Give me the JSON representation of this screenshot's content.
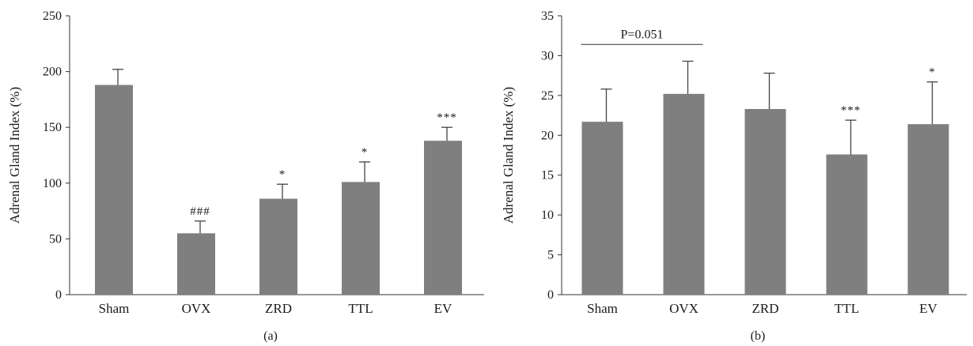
{
  "bar_color": "#7f7f7f",
  "chart_data": [
    {
      "type": "bar",
      "panel_label": "(a)",
      "ylabel": "Adrenal Gland Index (%)",
      "ylim": [
        0,
        250
      ],
      "yticks": [
        0,
        50,
        100,
        150,
        200,
        250
      ],
      "categories": [
        "Sham",
        "OVX",
        "ZRD",
        "TTL",
        "EV"
      ],
      "values": [
        188,
        55,
        86,
        101,
        138
      ],
      "errors": [
        14,
        11,
        13,
        18,
        12
      ],
      "annotations": [
        "",
        "###",
        "*",
        "*",
        "***"
      ],
      "bracket": null
    },
    {
      "type": "bar",
      "panel_label": "(b)",
      "ylabel": "Adrenal Gland Index (%)",
      "ylim": [
        0,
        35
      ],
      "yticks": [
        0,
        5,
        10,
        15,
        20,
        25,
        30,
        35
      ],
      "categories": [
        "Sham",
        "OVX",
        "ZRD",
        "TTL",
        "EV"
      ],
      "values": [
        21.7,
        25.2,
        23.3,
        17.6,
        21.4
      ],
      "errors": [
        4.1,
        4.1,
        4.5,
        4.3,
        5.3
      ],
      "annotations": [
        "",
        "",
        "",
        "***",
        "*"
      ],
      "bracket": {
        "from": 0,
        "to": 1,
        "label": "P=0.051",
        "y": 31.4
      }
    }
  ]
}
